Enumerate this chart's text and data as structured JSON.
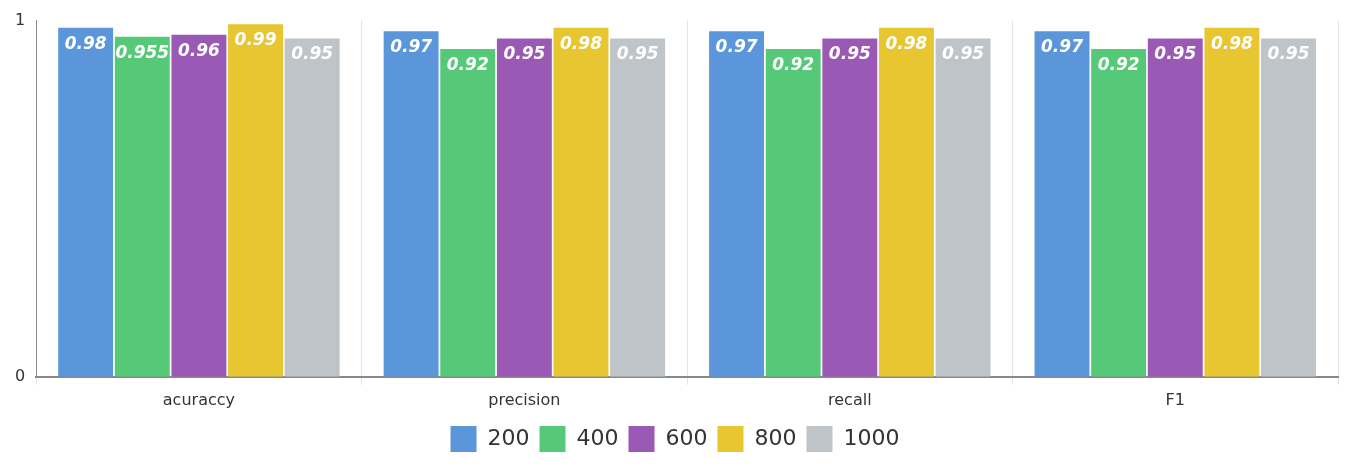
{
  "chart_data": {
    "type": "bar",
    "categories": [
      "acuraccy",
      "precision",
      "recall",
      "F1"
    ],
    "series": [
      {
        "name": "200",
        "color": "#5b96db",
        "values": [
          0.98,
          0.97,
          0.97,
          0.97
        ]
      },
      {
        "name": "400",
        "color": "#55c977",
        "values": [
          0.955,
          0.92,
          0.92,
          0.92
        ]
      },
      {
        "name": "600",
        "color": "#9b59b6",
        "values": [
          0.96,
          0.95,
          0.95,
          0.95
        ]
      },
      {
        "name": "800",
        "color": "#e8c631",
        "values": [
          0.99,
          0.98,
          0.98,
          0.98
        ]
      },
      {
        "name": "1000",
        "color": "#bfc4c8",
        "values": [
          0.95,
          0.95,
          0.95,
          0.95
        ]
      }
    ],
    "ylim": [
      0,
      1
    ],
    "yticks": [
      0,
      1
    ],
    "grid": "x",
    "legend": "bottom",
    "data_labels": true
  }
}
